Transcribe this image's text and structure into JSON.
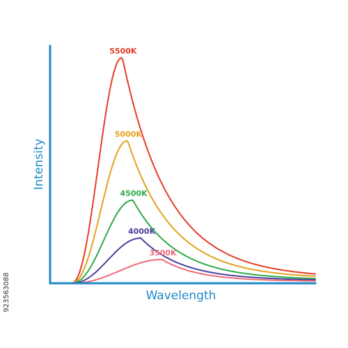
{
  "chart_data": {
    "type": "line",
    "xlabel": "Wavelength",
    "ylabel": "Intensity",
    "axes_color": "#1f88c8",
    "grid": false,
    "tick_labels": false,
    "xlim": [
      0,
      1
    ],
    "ylim": [
      0,
      1
    ],
    "series": [
      {
        "name": "5500K",
        "color": "#e53b2a",
        "peak_x": 0.27,
        "peak_y": 0.95,
        "tail_y": 0.04
      },
      {
        "name": "5000K",
        "color": "#e2a21e",
        "peak_x": 0.29,
        "peak_y": 0.6,
        "tail_y": 0.03
      },
      {
        "name": "4500K",
        "color": "#2eaa4a",
        "peak_x": 0.31,
        "peak_y": 0.35,
        "tail_y": 0.02
      },
      {
        "name": "4000K",
        "color": "#4a3f9e",
        "peak_x": 0.34,
        "peak_y": 0.19,
        "tail_y": 0.015
      },
      {
        "name": "3500K",
        "color": "#ee6a78",
        "peak_x": 0.42,
        "peak_y": 0.1,
        "tail_y": 0.01
      }
    ]
  },
  "side_id": "923563088"
}
